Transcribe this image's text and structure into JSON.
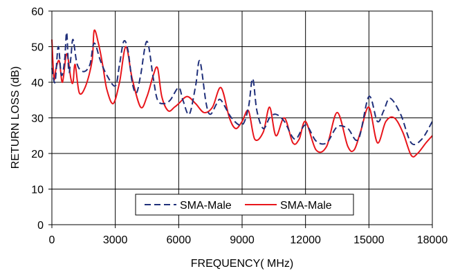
{
  "chart_data": {
    "type": "line",
    "title": "",
    "xlabel": "FREQUENCY( MHz)",
    "ylabel": "RETURN LOSS (dB)",
    "xlim": [
      0,
      18000
    ],
    "ylim": [
      0,
      60
    ],
    "x_ticks": [
      0,
      3000,
      6000,
      9000,
      12000,
      15000,
      18000
    ],
    "y_ticks": [
      0,
      10,
      20,
      30,
      40,
      50,
      60
    ],
    "x_tick_labels": [
      "0",
      "3000",
      "6000",
      "9000",
      "12000",
      "15000",
      "18000"
    ],
    "y_tick_labels": [
      "0",
      "10",
      "20",
      "30",
      "40",
      "50",
      "60"
    ],
    "grid": true,
    "legend_position": "bottom-center",
    "series": [
      {
        "name": "SMA-Male",
        "color": "#1f2f7a",
        "style": "dashed",
        "x": [
          0,
          150,
          300,
          450,
          600,
          700,
          800,
          900,
          1000,
          1200,
          1500,
          1800,
          2000,
          2300,
          2600,
          3000,
          3200,
          3400,
          3600,
          3800,
          4000,
          4200,
          4500,
          4800,
          5000,
          5300,
          5600,
          6000,
          6200,
          6500,
          6800,
          7000,
          7300,
          7500,
          7800,
          8000,
          8500,
          9000,
          9300,
          9500,
          9700,
          10000,
          10300,
          10600,
          11000,
          11500,
          12000,
          12500,
          13000,
          13500,
          14000,
          14500,
          15000,
          15400,
          15700,
          16000,
          16500,
          17000,
          17500,
          18000
        ],
        "values": [
          44,
          40,
          50,
          42,
          46,
          54,
          43,
          47,
          52,
          45,
          43,
          45,
          51,
          46,
          42,
          39,
          45,
          51.5,
          49,
          40,
          37,
          42,
          51.5,
          41,
          35,
          34,
          35,
          38.5,
          35,
          31,
          39,
          46,
          34,
          31,
          34,
          35,
          30,
          28,
          33,
          41,
          32,
          27,
          30,
          31,
          29,
          24,
          28,
          23.5,
          23,
          27.5,
          27,
          24,
          36,
          29,
          32,
          35.5,
          31,
          23,
          24,
          29
        ]
      },
      {
        "name": "SMA-Male",
        "color": "#e8151b",
        "style": "solid",
        "x": [
          0,
          100,
          200,
          350,
          500,
          700,
          900,
          1000,
          1100,
          1300,
          1600,
          1900,
          2000,
          2200,
          2400,
          2600,
          2900,
          3200,
          3500,
          3800,
          4200,
          4500,
          4800,
          5000,
          5200,
          5500,
          5800,
          6000,
          6400,
          6800,
          7200,
          7600,
          8000,
          8400,
          8700,
          9000,
          9300,
          9600,
          10000,
          10300,
          10600,
          11000,
          11400,
          11700,
          12000,
          12500,
          13000,
          13500,
          14000,
          14300,
          14600,
          15000,
          15400,
          15800,
          16200,
          16600,
          17000,
          17300,
          17700,
          18000
        ],
        "values": [
          52,
          41,
          44,
          46,
          40,
          48,
          41,
          40,
          45,
          37,
          39,
          46,
          54.5,
          51,
          45,
          38,
          34,
          40,
          50,
          41,
          33,
          36,
          42,
          44,
          36,
          32,
          33,
          34,
          36,
          34,
          31.5,
          33,
          38.5,
          30,
          27,
          29,
          32,
          24,
          26,
          33,
          25,
          30,
          23,
          24,
          29,
          21,
          22,
          31.5,
          22,
          21,
          26,
          33,
          23,
          29,
          30,
          26,
          19.5,
          20,
          23,
          25
        ]
      }
    ]
  }
}
